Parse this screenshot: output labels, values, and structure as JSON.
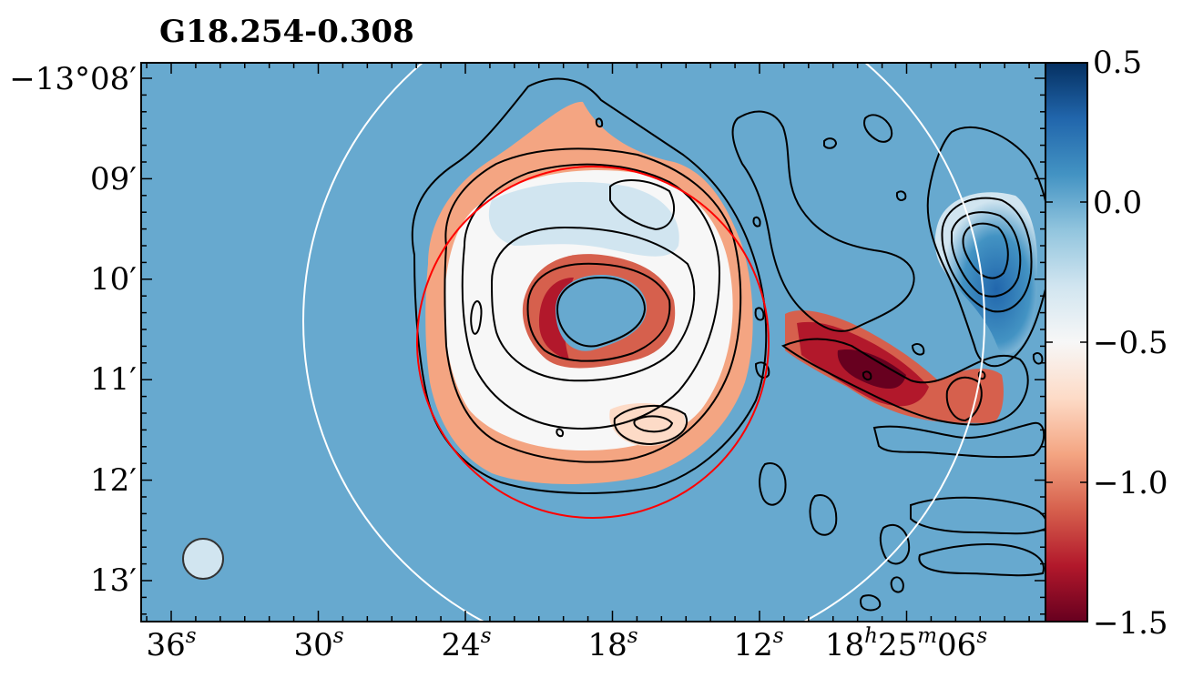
{
  "chart_data": {
    "type": "heatmap",
    "title": "G18.254-0.308",
    "xlabel": "",
    "ylabel": "",
    "x_ticks": [
      {
        "base": "36",
        "sup": "s"
      },
      {
        "base": "30",
        "sup": "s"
      },
      {
        "base": "24",
        "sup": "s"
      },
      {
        "base": "18",
        "sup": "s"
      },
      {
        "base": "12",
        "sup": "s"
      },
      {
        "base": "18",
        "sup": "h",
        "base2": "25",
        "sup2": "m",
        "base3": "06",
        "sup3": "s"
      }
    ],
    "y_ticks": [
      "−13°08′",
      "09′",
      "10′",
      "11′",
      "12′",
      "13′"
    ],
    "colorbar": {
      "ticks": [
        "0.5",
        "0.0",
        "−0.5",
        "−1.0",
        "−1.5"
      ],
      "range": [
        -1.5,
        0.5
      ],
      "colormap": "RdBu",
      "colors": [
        "#67001f",
        "#b2182b",
        "#d6604d",
        "#f4a582",
        "#fddbc7",
        "#f7f7f7",
        "#d1e5f0",
        "#92c5de",
        "#4393c3",
        "#2166ac",
        "#053061"
      ]
    },
    "background_value": 0.0,
    "colors": {
      "background": "#67a9cf",
      "region_circle": "#ff0000",
      "outer_circle": "#ffffff",
      "contours": "#000000",
      "beam": "#d1e5f0"
    }
  }
}
